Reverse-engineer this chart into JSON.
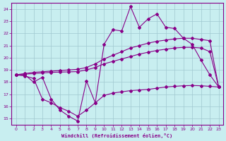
{
  "xlabel": "Windchill (Refroidissement éolien,°C)",
  "xlim": [
    -0.5,
    23.5
  ],
  "ylim": [
    14.5,
    24.5
  ],
  "xticks": [
    0,
    1,
    2,
    3,
    4,
    5,
    6,
    7,
    8,
    9,
    10,
    11,
    12,
    13,
    14,
    15,
    16,
    17,
    18,
    19,
    20,
    21,
    22,
    23
  ],
  "yticks": [
    15,
    16,
    17,
    18,
    19,
    20,
    21,
    22,
    23,
    24
  ],
  "background_color": "#c8eef0",
  "grid_color": "#a0c8d0",
  "line_color": "#880088",
  "actual": [
    18.6,
    18.6,
    18.0,
    18.4,
    16.6,
    15.7,
    15.2,
    14.8,
    18.1,
    16.3,
    21.1,
    22.3,
    22.2,
    24.2,
    22.5,
    23.2,
    23.6,
    22.5,
    22.4,
    21.6,
    21.1,
    19.8,
    18.6,
    17.6
  ],
  "upper_trend": [
    18.6,
    18.7,
    18.8,
    18.85,
    18.9,
    18.95,
    19.0,
    19.05,
    19.2,
    19.5,
    19.9,
    20.2,
    20.5,
    20.8,
    21.0,
    21.2,
    21.35,
    21.45,
    21.55,
    21.6,
    21.6,
    21.5,
    21.4,
    17.6
  ],
  "mid_trend": [
    18.6,
    18.65,
    18.7,
    18.75,
    18.8,
    18.82,
    18.84,
    18.86,
    19.0,
    19.2,
    19.5,
    19.7,
    19.9,
    20.1,
    20.3,
    20.45,
    20.6,
    20.7,
    20.8,
    20.85,
    20.85,
    20.8,
    20.5,
    17.6
  ],
  "lower": [
    18.6,
    18.5,
    18.3,
    16.6,
    16.3,
    15.9,
    15.6,
    15.2,
    15.7,
    16.3,
    16.9,
    17.1,
    17.2,
    17.3,
    17.35,
    17.4,
    17.5,
    17.6,
    17.65,
    17.7,
    17.72,
    17.7,
    17.65,
    17.6
  ]
}
